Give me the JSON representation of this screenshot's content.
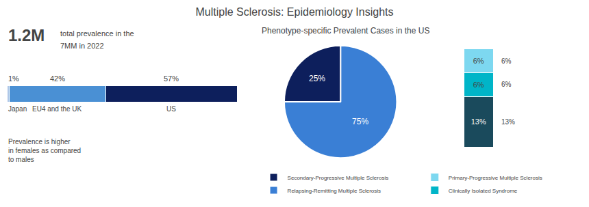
{
  "title": "Multiple Sclerosis: Epidemiology Insights",
  "chart_data": [
    {
      "type": "bar",
      "orientation": "horizontal",
      "stacked": true,
      "data_labels": true,
      "tick_labels": false,
      "xlim": [
        0,
        100
      ],
      "annotations": [
        "1.2M",
        "total prevalence in the",
        "7MM in 2022",
        "Prevalence is higher\nin females as compared\nto males"
      ],
      "series": [
        {
          "name": "Japan",
          "color": "#b0c8e8",
          "values": [
            1
          ],
          "value_labels": [
            "1%"
          ]
        },
        {
          "name": "EU4 and the UK",
          "color": "#4a90d4",
          "values": [
            42
          ],
          "value_labels": [
            "42%"
          ]
        },
        {
          "name": "US",
          "color": "#0d1f5c",
          "values": [
            57
          ],
          "value_labels": [
            "57%"
          ]
        }
      ]
    },
    {
      "type": "pie",
      "title": "Phenotype-specific Prevalent Cases in the US",
      "categories": [
        "Relapsing-Remitting Multiple Sclerosis",
        "Secondary-Progressive Multiple Sclerosis"
      ],
      "values": [
        75,
        25
      ],
      "value_labels": [
        "75%",
        "25%"
      ],
      "colors": [
        "#3a7fd5",
        "#0d1f5c"
      ],
      "data_labels": true,
      "legend": "bottom"
    },
    {
      "type": "bar",
      "stacked": true,
      "data_labels": true,
      "tick_labels": false,
      "ylim": [
        0,
        25
      ],
      "legend": "bottom",
      "series": [
        {
          "color": "#1a4a5c",
          "values": [
            13
          ],
          "value_labels": [
            "13%"
          ]
        },
        {
          "name": "Clinically Isolated Syndrome",
          "color": "#00b5c8",
          "values": [
            6
          ],
          "value_labels": [
            "6%"
          ]
        },
        {
          "name": "Primary-Progressive Multiple Sclerosis",
          "color": "#7dd8f0",
          "values": [
            6
          ],
          "value_labels": [
            "6%"
          ]
        }
      ]
    }
  ]
}
